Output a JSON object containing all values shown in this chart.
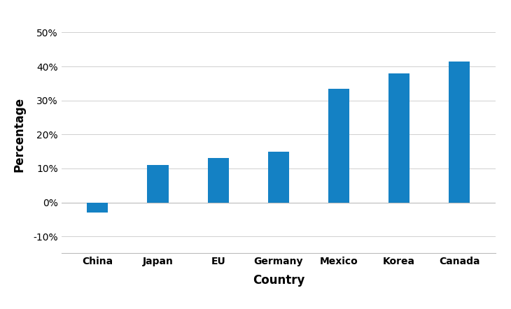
{
  "categories": [
    "China",
    "Japan",
    "EU",
    "Germany",
    "Mexico",
    "Korea",
    "Canada"
  ],
  "values": [
    -3.0,
    11.0,
    13.0,
    15.0,
    33.5,
    38.0,
    41.5
  ],
  "bar_color": "#1481C4",
  "xlabel": "Country",
  "ylabel": "Percentage",
  "ylim": [
    -15,
    55
  ],
  "yticks": [
    -10,
    0,
    10,
    20,
    30,
    40,
    50
  ],
  "title": "",
  "background_color": "#ffffff",
  "grid_color": "#d0d0d0",
  "bar_width": 0.35,
  "label_fontsize": 10,
  "axis_label_fontsize": 12
}
